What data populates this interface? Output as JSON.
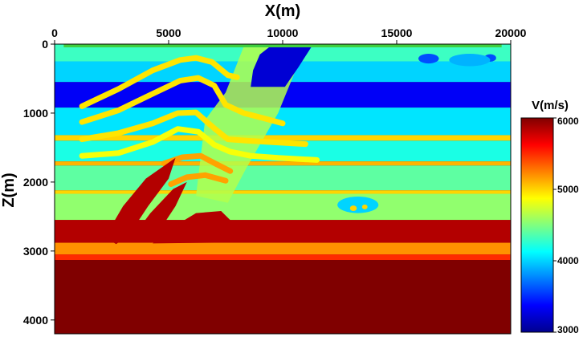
{
  "chart_data": {
    "type": "heatmap",
    "title": "",
    "xlabel": "X(m)",
    "ylabel": "Z(m)",
    "x_axis_position": "top",
    "x_ticks": [
      0,
      5000,
      10000,
      15000,
      20000
    ],
    "x_tick_labels": [
      "0",
      "5000",
      "10000",
      "15000",
      "20000"
    ],
    "y_ticks": [
      0,
      1000,
      2000,
      3000,
      4000
    ],
    "y_tick_labels": [
      "0",
      "1000",
      "2000",
      "3000",
      "4000"
    ],
    "xlim": [
      0,
      20000
    ],
    "ylim": [
      0,
      4200
    ],
    "y_inverted": true,
    "grid": false,
    "colorbar": {
      "title": "V(m/s)",
      "ticks": [
        3000,
        4000,
        5000,
        6000
      ],
      "tick_labels": [
        "3000",
        "4000",
        "5000",
        "6000"
      ],
      "vmin": 3000,
      "vmax": 6000,
      "colormap": "jet",
      "placement": "right"
    },
    "flat_layers": [
      {
        "z_top": 0,
        "z_bottom": 250,
        "velocity": 4300
      },
      {
        "z_top": 250,
        "z_bottom": 550,
        "velocity": 4000
      },
      {
        "z_top": 550,
        "z_bottom": 920,
        "velocity": 3350
      },
      {
        "z_top": 920,
        "z_bottom": 1320,
        "velocity": 4050
      },
      {
        "z_top": 1320,
        "z_bottom": 1400,
        "velocity": 5000
      },
      {
        "z_top": 1400,
        "z_bottom": 1700,
        "velocity": 4200
      },
      {
        "z_top": 1700,
        "z_bottom": 1760,
        "velocity": 5100
      },
      {
        "z_top": 1760,
        "z_bottom": 2120,
        "velocity": 4400
      },
      {
        "z_top": 2120,
        "z_bottom": 2170,
        "velocity": 5000
      },
      {
        "z_top": 2170,
        "z_bottom": 2550,
        "velocity": 4550
      },
      {
        "z_top": 2550,
        "z_bottom": 2880,
        "velocity": 5850
      },
      {
        "z_top": 2880,
        "z_bottom": 3050,
        "velocity": 5200
      },
      {
        "z_top": 3050,
        "z_bottom": 3130,
        "velocity": 5500
      },
      {
        "z_top": 3130,
        "z_bottom": 4200,
        "velocity": 6000
      }
    ],
    "anticline_reflectors": [
      {
        "velocity": 4950,
        "points": [
          [
            1200,
            900
          ],
          [
            2800,
            650
          ],
          [
            4300,
            380
          ],
          [
            5500,
            230
          ],
          [
            6200,
            200
          ],
          [
            6900,
            260
          ],
          [
            7600,
            450
          ],
          [
            8000,
            480
          ]
        ]
      },
      {
        "velocity": 4950,
        "points": [
          [
            1200,
            1130
          ],
          [
            2800,
            960
          ],
          [
            4300,
            720
          ],
          [
            5500,
            530
          ],
          [
            6300,
            490
          ],
          [
            7000,
            600
          ],
          [
            7500,
            880
          ],
          [
            8300,
            1000
          ],
          [
            9000,
            1060
          ],
          [
            10000,
            1150
          ]
        ]
      },
      {
        "velocity": 4950,
        "points": [
          [
            1200,
            1380
          ],
          [
            2800,
            1290
          ],
          [
            4300,
            1150
          ],
          [
            5400,
            1000
          ],
          [
            6200,
            990
          ],
          [
            7000,
            1220
          ],
          [
            7600,
            1380
          ],
          [
            8400,
            1400
          ],
          [
            9500,
            1420
          ],
          [
            11000,
            1450
          ]
        ]
      },
      {
        "velocity": 4850,
        "points": [
          [
            1200,
            1620
          ],
          [
            2800,
            1580
          ],
          [
            4300,
            1420
          ],
          [
            5400,
            1230
          ],
          [
            6300,
            1270
          ],
          [
            7000,
            1460
          ],
          [
            7700,
            1560
          ],
          [
            8600,
            1620
          ],
          [
            9800,
            1650
          ],
          [
            11500,
            1680
          ]
        ]
      },
      {
        "velocity": 5150,
        "points": [
          [
            4800,
            1730
          ],
          [
            5600,
            1640
          ],
          [
            6400,
            1620
          ],
          [
            7100,
            1740
          ],
          [
            7700,
            1840
          ]
        ]
      },
      {
        "velocity": 5150,
        "points": [
          [
            5100,
            2030
          ],
          [
            5800,
            1930
          ],
          [
            6600,
            1900
          ],
          [
            7500,
            1980
          ]
        ]
      }
    ],
    "thrust_block_top": {
      "velocity": 3250,
      "points": [
        [
          8700,
          380
        ],
        [
          9000,
          150
        ],
        [
          9500,
          20
        ],
        [
          11300,
          20
        ],
        [
          10700,
          330
        ],
        [
          10100,
          620
        ],
        [
          8600,
          620
        ]
      ]
    },
    "thrust_fault_trace": {
      "velocity": 4650,
      "points": [
        [
          8300,
          30
        ],
        [
          11000,
          30
        ],
        [
          9800,
          1000
        ],
        [
          8400,
          1800
        ],
        [
          7600,
          2300
        ],
        [
          6200,
          2200
        ],
        [
          6600,
          1100
        ],
        [
          7500,
          700
        ]
      ]
    },
    "red_wedges": [
      {
        "velocity": 5850,
        "points": [
          [
            2200,
            2800
          ],
          [
            3000,
            2350
          ],
          [
            4000,
            1950
          ],
          [
            5300,
            1650
          ],
          [
            5000,
            1950
          ],
          [
            4100,
            2350
          ],
          [
            3300,
            2750
          ],
          [
            2700,
            2900
          ]
        ]
      },
      {
        "velocity": 5850,
        "points": [
          [
            3400,
            2800
          ],
          [
            4200,
            2450
          ],
          [
            5200,
            2100
          ],
          [
            5800,
            2000
          ],
          [
            5300,
            2350
          ],
          [
            4600,
            2700
          ],
          [
            4000,
            2880
          ]
        ]
      },
      {
        "velocity": 5850,
        "points": [
          [
            4300,
            2890
          ],
          [
            5200,
            2650
          ],
          [
            6200,
            2450
          ],
          [
            7300,
            2420
          ],
          [
            7700,
            2550
          ],
          [
            7000,
            2880
          ]
        ]
      }
    ],
    "shallow_lenses": [
      {
        "velocity": 3600,
        "cx": 16400,
        "cz": 210,
        "rx": 450,
        "rz": 70
      },
      {
        "velocity": 3600,
        "cx": 19100,
        "cz": 200,
        "rx": 260,
        "rz": 55
      },
      {
        "velocity": 3900,
        "cx": 18200,
        "cz": 230,
        "rx": 900,
        "rz": 90
      }
    ],
    "deep_lenses": [
      {
        "velocity": 4000,
        "cx": 13300,
        "cz": 2330,
        "rx": 900,
        "rz": 120
      },
      {
        "velocity": 5000,
        "cx": 13100,
        "cz": 2380,
        "rx": 150,
        "rz": 40
      },
      {
        "velocity": 5000,
        "cx": 13600,
        "cz": 2360,
        "rx": 120,
        "rz": 35
      }
    ],
    "surface_sources": {
      "velocity": 4500,
      "z": 0,
      "x_range": [
        400,
        19600
      ],
      "color": "#3fcf3f"
    }
  }
}
